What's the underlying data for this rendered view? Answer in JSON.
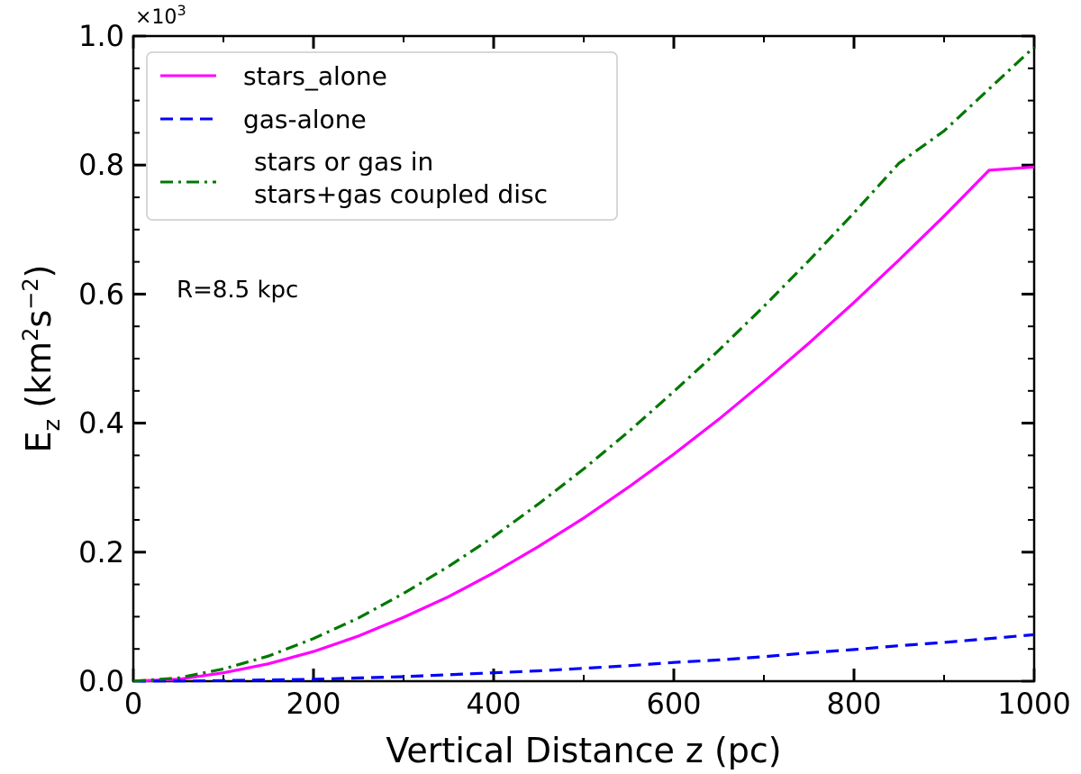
{
  "chart_data": {
    "type": "line",
    "xlabel": "Vertical Distance z (pc)",
    "ylabel_base": "E",
    "ylabel_sub": "z",
    "ylabel_unit_pre": " (km",
    "ylabel_unit_sup1": "2",
    "ylabel_unit_mid": "s",
    "ylabel_unit_sup2": "−2",
    "ylabel_unit_post": ")",
    "y_multiplier_base": "×10",
    "y_multiplier_exp": "3",
    "xlim": [
      0,
      1000
    ],
    "ylim": [
      0.0,
      1.0
    ],
    "x_ticks": [
      0,
      200,
      400,
      600,
      800,
      1000
    ],
    "x_tick_labels": [
      "0",
      "200",
      "400",
      "600",
      "800",
      "1000"
    ],
    "y_ticks": [
      0.0,
      0.2,
      0.4,
      0.6,
      0.8,
      1.0
    ],
    "y_tick_labels": [
      "0.0",
      "0.2",
      "0.4",
      "0.6",
      "0.8",
      "1.0"
    ],
    "grid": false,
    "legend_position": "top-left",
    "annotation": "R=8.5 kpc",
    "x": [
      0,
      50,
      100,
      150,
      200,
      250,
      300,
      350,
      400,
      450,
      500,
      550,
      600,
      650,
      700,
      750,
      800,
      850,
      900,
      950,
      1000
    ],
    "series": [
      {
        "name": "stars_alone",
        "color": "#ff00ff",
        "dash": "solid",
        "values": [
          0.0,
          0.003,
          0.013,
          0.027,
          0.046,
          0.07,
          0.099,
          0.131,
          0.168,
          0.209,
          0.253,
          0.301,
          0.352,
          0.406,
          0.464,
          0.524,
          0.587,
          0.653,
          0.721,
          0.792,
          0.797
        ]
      },
      {
        "name": "gas-alone",
        "color": "#0000ff",
        "dash": "dashed",
        "values": [
          0.0,
          0.0002,
          0.001,
          0.002,
          0.003,
          0.005,
          0.007,
          0.01,
          0.013,
          0.016,
          0.02,
          0.024,
          0.029,
          0.033,
          0.038,
          0.044,
          0.049,
          0.055,
          0.06,
          0.066,
          0.072
        ]
      },
      {
        "name_lines": [
          "stars or gas in",
          "stars+gas coupled disc"
        ],
        "color": "#007700",
        "dash": "dashdot",
        "values": [
          0.0,
          0.005,
          0.019,
          0.039,
          0.066,
          0.098,
          0.136,
          0.178,
          0.224,
          0.275,
          0.329,
          0.387,
          0.449,
          0.513,
          0.581,
          0.652,
          0.726,
          0.803,
          0.853,
          0.918,
          0.983
        ]
      }
    ]
  }
}
